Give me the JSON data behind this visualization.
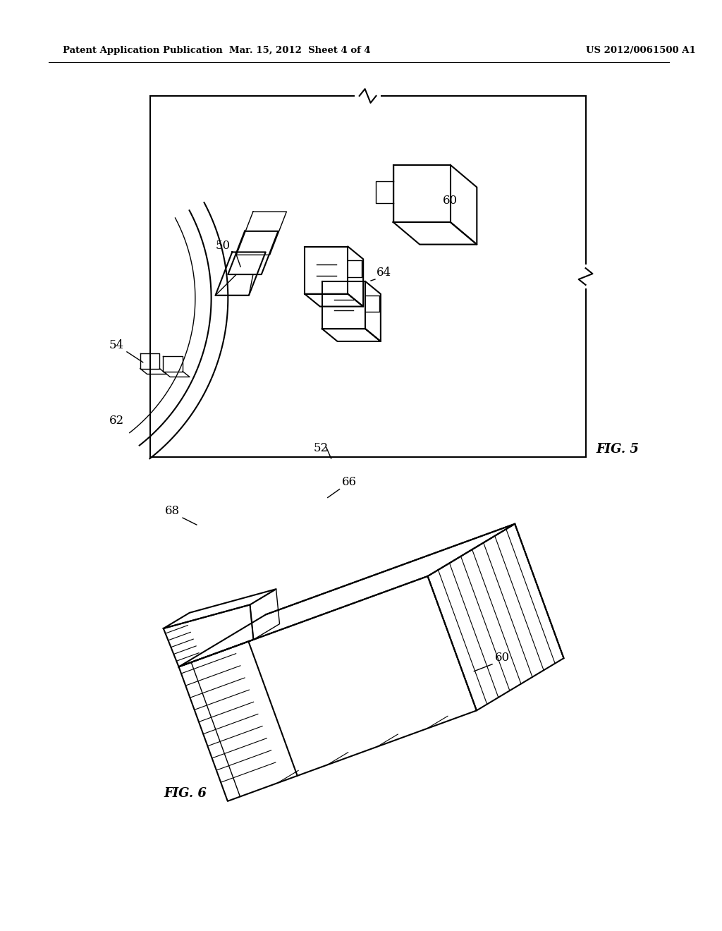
{
  "bg_color": "#ffffff",
  "line_color": "#000000",
  "header_left": "Patent Application Publication",
  "header_mid": "Mar. 15, 2012  Sheet 4 of 4",
  "header_right": "US 2012/0061500 A1",
  "fig5_label": "FIG. 5",
  "fig6_label": "FIG. 6"
}
